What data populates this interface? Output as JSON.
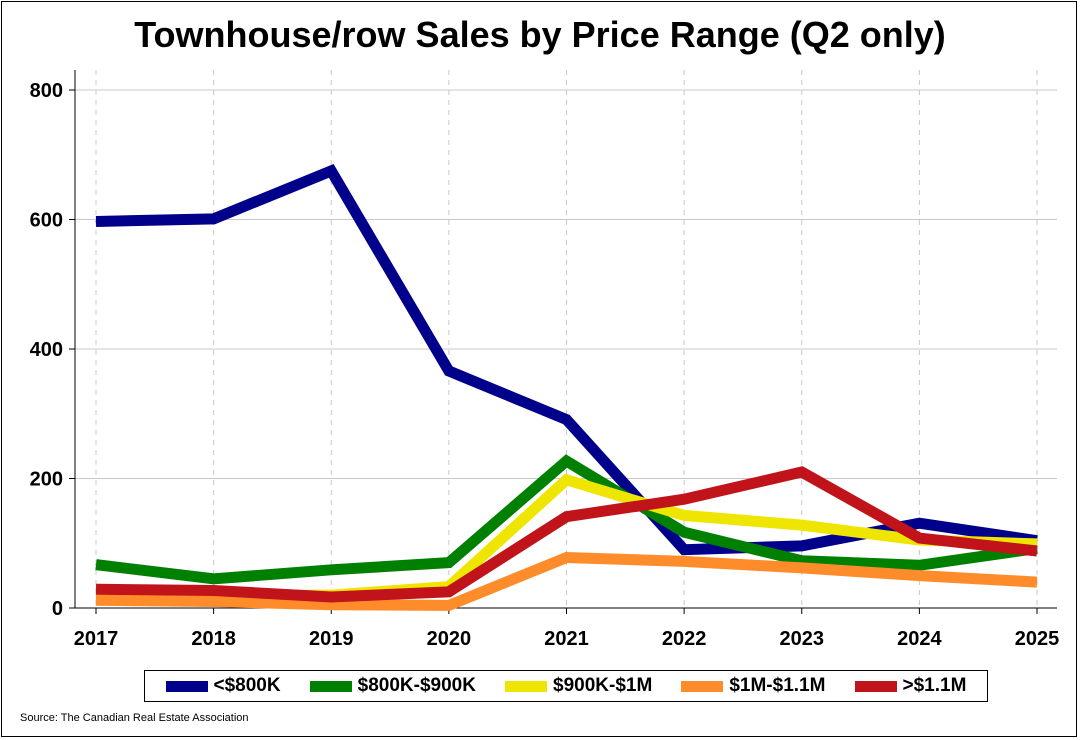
{
  "chart_data": {
    "type": "line",
    "title": "Townhouse/row Sales by Price Range (Q2 only)",
    "xlabel": "",
    "ylabel": "",
    "x": [
      "2017",
      "2018",
      "2019",
      "2020",
      "2021",
      "2022",
      "2023",
      "2024",
      "2025"
    ],
    "ylim": [
      0,
      800
    ],
    "yticks": [
      0,
      200,
      400,
      600,
      800
    ],
    "grid": "on",
    "legend_position": "bottom",
    "series": [
      {
        "name": "<$800K",
        "color": "#00008B",
        "values": [
          597,
          601,
          675,
          366,
          291,
          90,
          96,
          131,
          104
        ]
      },
      {
        "name": "$800K-$900K",
        "color": "#008000",
        "values": [
          67,
          45,
          59,
          70,
          227,
          117,
          73,
          66,
          92
        ]
      },
      {
        "name": "$900K-$1M",
        "color": "#EEE600",
        "values": [
          20,
          18,
          20,
          33,
          198,
          143,
          128,
          105,
          99
        ]
      },
      {
        "name": "$1M-$1.1M",
        "color": "#FF8C2A",
        "values": [
          12,
          10,
          5,
          4,
          78,
          72,
          62,
          50,
          40
        ]
      },
      {
        "name": ">$1.1M",
        "color": "#C0141A",
        "values": [
          29,
          27,
          17,
          25,
          141,
          168,
          210,
          108,
          88
        ]
      }
    ]
  },
  "source": "Source: The Canadian Real Estate Association"
}
